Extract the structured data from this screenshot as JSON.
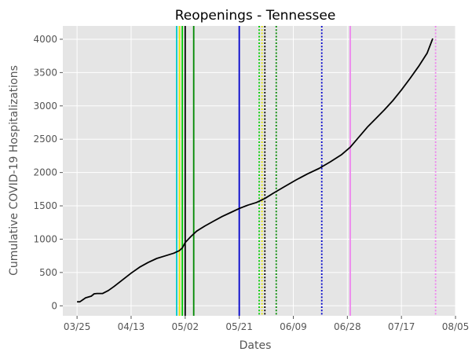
{
  "chart_data": {
    "type": "line",
    "title": "Reopenings - Tennessee",
    "xlabel": "Dates",
    "ylabel": "Cumulative COVID-19 Hospitalizations",
    "xlim": [
      "2020-03-20",
      "2020-08-05"
    ],
    "ylim": [
      -150,
      4200
    ],
    "x_ticks": [
      "03/25",
      "04/13",
      "05/02",
      "05/21",
      "06/09",
      "06/28",
      "07/17",
      "08/05"
    ],
    "x_tick_dates": [
      "2020-03-25",
      "2020-04-13",
      "2020-05-02",
      "2020-05-21",
      "2020-06-09",
      "2020-06-28",
      "2020-07-17",
      "2020-08-05"
    ],
    "y_ticks": [
      0,
      500,
      1000,
      1500,
      2000,
      2500,
      3000,
      3500,
      4000
    ],
    "grid": true,
    "background": "#e5e5e5",
    "series": [
      {
        "color": "#000000",
        "points": [
          [
            "2020-03-25",
            60
          ],
          [
            "2020-03-26",
            60
          ],
          [
            "2020-03-27",
            90
          ],
          [
            "2020-03-28",
            120
          ],
          [
            "2020-03-30",
            145
          ],
          [
            "2020-03-31",
            180
          ],
          [
            "2020-04-01",
            185
          ],
          [
            "2020-04-03",
            185
          ],
          [
            "2020-04-05",
            230
          ],
          [
            "2020-04-07",
            290
          ],
          [
            "2020-04-10",
            390
          ],
          [
            "2020-04-13",
            490
          ],
          [
            "2020-04-16",
            580
          ],
          [
            "2020-04-19",
            650
          ],
          [
            "2020-04-22",
            710
          ],
          [
            "2020-04-25",
            750
          ],
          [
            "2020-04-28",
            790
          ],
          [
            "2020-04-30",
            830
          ],
          [
            "2020-05-01",
            870
          ],
          [
            "2020-05-02",
            950
          ],
          [
            "2020-05-04",
            1040
          ],
          [
            "2020-05-06",
            1120
          ],
          [
            "2020-05-09",
            1200
          ],
          [
            "2020-05-12",
            1270
          ],
          [
            "2020-05-15",
            1340
          ],
          [
            "2020-05-18",
            1400
          ],
          [
            "2020-05-21",
            1460
          ],
          [
            "2020-05-24",
            1510
          ],
          [
            "2020-05-27",
            1550
          ],
          [
            "2020-05-30",
            1610
          ],
          [
            "2020-06-02",
            1690
          ],
          [
            "2020-06-06",
            1790
          ],
          [
            "2020-06-10",
            1890
          ],
          [
            "2020-06-14",
            1980
          ],
          [
            "2020-06-18",
            2060
          ],
          [
            "2020-06-22",
            2160
          ],
          [
            "2020-06-26",
            2270
          ],
          [
            "2020-06-29",
            2380
          ],
          [
            "2020-07-02",
            2530
          ],
          [
            "2020-07-05",
            2680
          ],
          [
            "2020-07-08",
            2810
          ],
          [
            "2020-07-11",
            2940
          ],
          [
            "2020-07-14",
            3080
          ],
          [
            "2020-07-17",
            3240
          ],
          [
            "2020-07-20",
            3410
          ],
          [
            "2020-07-23",
            3590
          ],
          [
            "2020-07-26",
            3790
          ],
          [
            "2020-07-28",
            4010
          ]
        ]
      }
    ],
    "vlines": [
      {
        "date": "2020-04-29",
        "color": "#00cccc",
        "style": "solid"
      },
      {
        "date": "2020-04-30",
        "color": "#e6e600",
        "style": "solid"
      },
      {
        "date": "2020-05-01",
        "color": "#00cc00",
        "style": "solid"
      },
      {
        "date": "2020-05-02",
        "color": "#000000",
        "style": "solid"
      },
      {
        "date": "2020-05-05",
        "color": "#008800",
        "style": "solid"
      },
      {
        "date": "2020-05-21",
        "color": "#0000cc",
        "style": "solid"
      },
      {
        "date": "2020-05-28",
        "color": "#00cc00",
        "style": "dotted"
      },
      {
        "date": "2020-05-29",
        "color": "#e6e600",
        "style": "dotted"
      },
      {
        "date": "2020-05-30",
        "color": "#000000",
        "style": "dotted"
      },
      {
        "date": "2020-06-03",
        "color": "#008800",
        "style": "dotted"
      },
      {
        "date": "2020-06-19",
        "color": "#0000cc",
        "style": "dotted"
      },
      {
        "date": "2020-06-29",
        "color": "#ee82ee",
        "style": "solid"
      },
      {
        "date": "2020-07-29",
        "color": "#ee82ee",
        "style": "dotted"
      }
    ]
  }
}
